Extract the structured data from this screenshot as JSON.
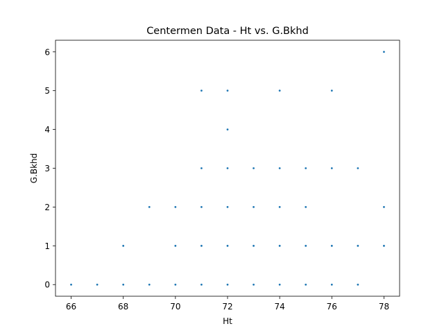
{
  "chart_data": {
    "type": "scatter",
    "title": "Centermen Data - Ht vs. G.Bkhd",
    "xlabel": "Ht",
    "ylabel": "G.Bkhd",
    "xlim": [
      65.4,
      78.6
    ],
    "ylim": [
      -0.3,
      6.3
    ],
    "xticks": [
      "66",
      "68",
      "70",
      "72",
      "74",
      "76",
      "78"
    ],
    "yticks": [
      "0",
      "1",
      "2",
      "3",
      "4",
      "5",
      "6"
    ],
    "grid": false,
    "legend": "none",
    "marker_color": "#1f77b4",
    "points": [
      {
        "x": 66,
        "y": 0
      },
      {
        "x": 67,
        "y": 0
      },
      {
        "x": 68,
        "y": 0
      },
      {
        "x": 69,
        "y": 0
      },
      {
        "x": 70,
        "y": 0
      },
      {
        "x": 71,
        "y": 0
      },
      {
        "x": 72,
        "y": 0
      },
      {
        "x": 73,
        "y": 0
      },
      {
        "x": 74,
        "y": 0
      },
      {
        "x": 75,
        "y": 0
      },
      {
        "x": 76,
        "y": 0
      },
      {
        "x": 77,
        "y": 0
      },
      {
        "x": 68,
        "y": 1
      },
      {
        "x": 70,
        "y": 1
      },
      {
        "x": 71,
        "y": 1
      },
      {
        "x": 72,
        "y": 1
      },
      {
        "x": 73,
        "y": 1
      },
      {
        "x": 74,
        "y": 1
      },
      {
        "x": 75,
        "y": 1
      },
      {
        "x": 76,
        "y": 1
      },
      {
        "x": 77,
        "y": 1
      },
      {
        "x": 78,
        "y": 1
      },
      {
        "x": 69,
        "y": 2
      },
      {
        "x": 70,
        "y": 2
      },
      {
        "x": 71,
        "y": 2
      },
      {
        "x": 72,
        "y": 2
      },
      {
        "x": 73,
        "y": 2
      },
      {
        "x": 74,
        "y": 2
      },
      {
        "x": 75,
        "y": 2
      },
      {
        "x": 78,
        "y": 2
      },
      {
        "x": 71,
        "y": 3
      },
      {
        "x": 72,
        "y": 3
      },
      {
        "x": 73,
        "y": 3
      },
      {
        "x": 74,
        "y": 3
      },
      {
        "x": 75,
        "y": 3
      },
      {
        "x": 76,
        "y": 3
      },
      {
        "x": 77,
        "y": 3
      },
      {
        "x": 72,
        "y": 4
      },
      {
        "x": 71,
        "y": 5
      },
      {
        "x": 72,
        "y": 5
      },
      {
        "x": 74,
        "y": 5
      },
      {
        "x": 76,
        "y": 5
      },
      {
        "x": 78,
        "y": 6
      }
    ]
  }
}
